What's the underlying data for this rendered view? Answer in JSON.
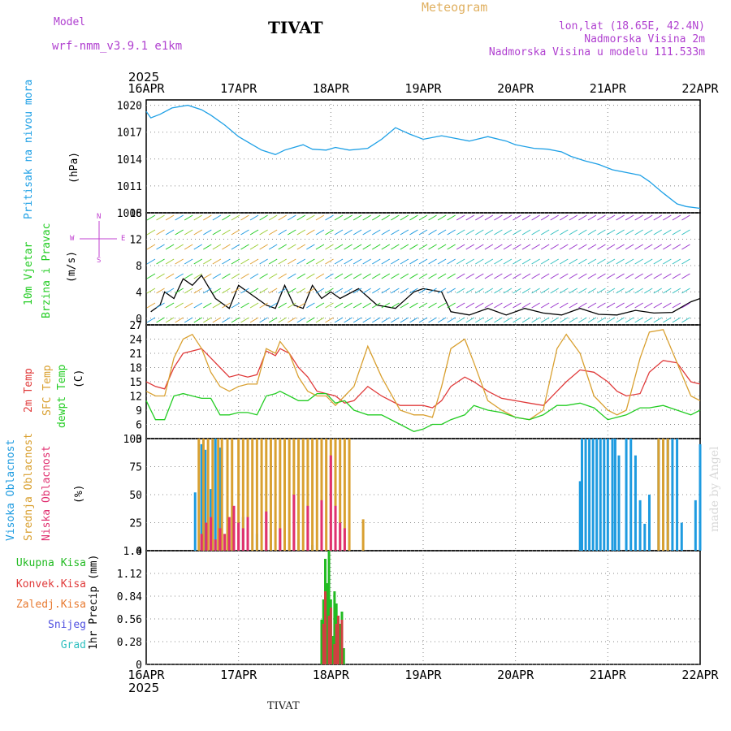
{
  "header": {
    "model_label": "Model",
    "model_name": "wrf-nmm_v3.9.1  e1km",
    "title": "TIVAT",
    "meteogram": "Meteogram",
    "lonlat": "lon,lat (18.65E, 42.4N)",
    "elevation": "Nadmorska Visina 2m",
    "model_elevation": "Nadmorska Visina u modelu 111.533m"
  },
  "footer": {
    "station": "TIVAT",
    "watermark": "made by Angel"
  },
  "time_axis": {
    "year": "2025",
    "labels": [
      "16APR",
      "17APR",
      "18APR",
      "19APR",
      "20APR",
      "21APR",
      "22APR"
    ]
  },
  "colors": {
    "pressure": "#1ea0e6",
    "temp": "#e03a3a",
    "sfc": "#d9a030",
    "dew": "#22cc22",
    "high_cloud": "#1e9be0",
    "mid_cloud": "#d9a030",
    "low_cloud": "#e03070",
    "total_rain": "#22bb22",
    "conv_rain": "#d04040"
  },
  "panels": {
    "pressure": {
      "title": "Pritisak na nivou mora",
      "unit": "(hPa)"
    },
    "wind": {
      "title1": "10m Vjetar",
      "title2": "Brzina i Pravac",
      "unit": "(m/s)",
      "compass_n": "N",
      "compass_w": "W",
      "compass_e": "E",
      "compass_s": "S"
    },
    "temp": {
      "t2m": "2m Temp",
      "sfc": "SFC Temp",
      "dew": "dewpt Temp",
      "unit": "(C)"
    },
    "cloud": {
      "high": "Visoka Oblacnost",
      "mid": "Srednja Oblacnost",
      "low": "Niska Oblacnost",
      "unit": "(%)"
    },
    "precip": {
      "unit": "1hr Precip (mm)",
      "legend": [
        "Ukupna Kisa",
        "Konvek.Kisa",
        "Zaledj.Kisa",
        "Snijeg",
        "Grad"
      ]
    }
  },
  "chart_data": [
    {
      "type": "line",
      "panel": "pressure",
      "x_range_days": [
        0,
        6
      ],
      "ylim": [
        1008,
        1020.6
      ],
      "yticks": [
        1008,
        1011,
        1014,
        1017,
        1020
      ],
      "grid": true,
      "series": [
        {
          "name": "Pritisak na nivou mora",
          "x": [
            0,
            0.05,
            0.15,
            0.28,
            0.45,
            0.6,
            0.7,
            0.85,
            1.0,
            1.15,
            1.25,
            1.4,
            1.5,
            1.6,
            1.7,
            1.8,
            1.95,
            2.05,
            2.2,
            2.4,
            2.55,
            2.7,
            2.85,
            3.0,
            3.2,
            3.35,
            3.5,
            3.7,
            3.9,
            4.0,
            4.2,
            4.35,
            4.5,
            4.6,
            4.75,
            4.9,
            5.05,
            5.2,
            5.35,
            5.45,
            5.6,
            5.75,
            5.85,
            6.0
          ],
          "y": [
            1019.3,
            1018.6,
            1019.0,
            1019.7,
            1020.0,
            1019.5,
            1018.9,
            1017.8,
            1016.5,
            1015.6,
            1015.0,
            1014.5,
            1015.0,
            1015.3,
            1015.6,
            1015.1,
            1015.0,
            1015.3,
            1015.0,
            1015.2,
            1016.2,
            1017.5,
            1016.8,
            1016.2,
            1016.6,
            1016.3,
            1016.0,
            1016.5,
            1016.0,
            1015.6,
            1015.2,
            1015.1,
            1014.8,
            1014.3,
            1013.8,
            1013.4,
            1012.8,
            1012.5,
            1012.2,
            1011.5,
            1010.2,
            1009.0,
            1008.7,
            1008.5
          ]
        }
      ]
    },
    {
      "type": "line",
      "panel": "wind",
      "x_range_days": [
        0,
        6
      ],
      "ylim": [
        -1,
        16
      ],
      "yticks": [
        0,
        4,
        8,
        12,
        16
      ],
      "grid": true,
      "series": [
        {
          "name": "10m Vjetar",
          "x": [
            0.05,
            0.15,
            0.2,
            0.3,
            0.4,
            0.5,
            0.6,
            0.75,
            0.8,
            0.9,
            1.0,
            1.1,
            1.2,
            1.3,
            1.4,
            1.5,
            1.6,
            1.7,
            1.8,
            1.9,
            2.0,
            2.1,
            2.3,
            2.5,
            2.7,
            2.9,
            3.0,
            3.2,
            3.3,
            3.5,
            3.7,
            3.9,
            4.1,
            4.3,
            4.5,
            4.7,
            4.9,
            5.1,
            5.3,
            5.5,
            5.7,
            5.9,
            6.0
          ],
          "y": [
            1,
            2,
            4,
            3,
            6,
            5,
            6.5,
            3,
            2.5,
            1.5,
            5,
            4,
            3,
            2,
            1.5,
            5,
            2,
            1.5,
            5,
            3,
            4,
            3,
            4.5,
            2,
            1.5,
            4,
            4.5,
            4,
            1,
            0.5,
            1.5,
            0.5,
            1.5,
            0.8,
            0.5,
            1.5,
            0.6,
            0.5,
            1.2,
            0.8,
            0.9,
            2.5,
            3
          ]
        }
      ]
    },
    {
      "type": "line",
      "panel": "temp",
      "x_range_days": [
        0,
        6
      ],
      "ylim": [
        3,
        27
      ],
      "yticks": [
        3,
        6,
        9,
        12,
        15,
        18,
        21,
        24,
        27
      ],
      "grid": true,
      "series": [
        {
          "name": "2m Temp",
          "x": [
            0,
            0.1,
            0.2,
            0.3,
            0.4,
            0.5,
            0.6,
            0.7,
            0.8,
            0.9,
            1.0,
            1.1,
            1.2,
            1.3,
            1.4,
            1.45,
            1.55,
            1.65,
            1.75,
            1.85,
            1.95,
            2.05,
            2.15,
            2.25,
            2.4,
            2.55,
            2.75,
            2.9,
            3.0,
            3.1,
            3.2,
            3.3,
            3.45,
            3.55,
            3.7,
            3.85,
            4.0,
            4.15,
            4.3,
            4.45,
            4.55,
            4.7,
            4.85,
            5.0,
            5.1,
            5.2,
            5.35,
            5.45,
            5.6,
            5.75,
            5.9,
            6.0
          ],
          "y": [
            15,
            14,
            13.5,
            18,
            21,
            21.5,
            22,
            20,
            18,
            16,
            16.5,
            16,
            16.5,
            21.5,
            20.5,
            22,
            21,
            18,
            16,
            13,
            12.5,
            12,
            10.5,
            11,
            14,
            12,
            10,
            10,
            10,
            9.5,
            11,
            14,
            16,
            15,
            13,
            11.5,
            11,
            10.5,
            10,
            13,
            15,
            17.5,
            17,
            15,
            13,
            12,
            12.5,
            17,
            19.5,
            19,
            15,
            14.5
          ]
        },
        {
          "name": "SFC Temp",
          "x": [
            0,
            0.1,
            0.2,
            0.3,
            0.4,
            0.5,
            0.6,
            0.7,
            0.8,
            0.9,
            1.0,
            1.1,
            1.2,
            1.3,
            1.4,
            1.45,
            1.55,
            1.65,
            1.75,
            1.85,
            1.95,
            2.05,
            2.15,
            2.25,
            2.4,
            2.55,
            2.75,
            2.9,
            3.0,
            3.1,
            3.2,
            3.3,
            3.45,
            3.55,
            3.7,
            3.85,
            4.0,
            4.15,
            4.3,
            4.45,
            4.55,
            4.7,
            4.85,
            5.0,
            5.1,
            5.2,
            5.35,
            5.45,
            5.6,
            5.75,
            5.9,
            6.0
          ],
          "y": [
            13,
            12,
            12,
            20,
            24,
            25,
            22,
            17,
            14,
            13,
            14,
            14.5,
            14.5,
            22,
            21,
            23.5,
            21,
            16,
            13,
            12,
            12,
            10,
            12,
            14,
            22.5,
            16,
            9,
            8,
            8,
            7.5,
            14,
            22,
            24,
            19,
            11,
            9,
            7.5,
            7,
            9,
            22,
            25,
            21,
            12,
            9,
            8,
            9,
            20,
            25.5,
            26,
            19,
            12,
            11
          ]
        },
        {
          "name": "dewpt Temp",
          "x": [
            0,
            0.1,
            0.2,
            0.3,
            0.4,
            0.5,
            0.6,
            0.7,
            0.8,
            0.9,
            1.0,
            1.1,
            1.2,
            1.3,
            1.4,
            1.45,
            1.55,
            1.65,
            1.75,
            1.85,
            1.95,
            2.05,
            2.15,
            2.25,
            2.4,
            2.55,
            2.75,
            2.9,
            3.0,
            3.1,
            3.2,
            3.3,
            3.45,
            3.55,
            3.7,
            3.85,
            4.0,
            4.15,
            4.3,
            4.45,
            4.55,
            4.7,
            4.85,
            5.0,
            5.1,
            5.2,
            5.35,
            5.45,
            5.6,
            5.75,
            5.9,
            6.0
          ],
          "y": [
            11,
            7,
            7,
            12,
            12.5,
            12,
            11.5,
            11.5,
            8,
            8,
            8.5,
            8.5,
            8,
            12,
            12.5,
            13,
            12,
            11,
            11,
            12.5,
            12.5,
            10.5,
            11,
            9,
            8,
            8,
            6,
            4.5,
            5,
            6,
            6,
            7,
            8,
            10,
            9,
            8.5,
            7.5,
            7,
            8,
            10,
            10,
            10.5,
            9.5,
            7,
            7.5,
            8,
            9.5,
            9.5,
            10,
            9,
            8,
            9
          ]
        }
      ]
    },
    {
      "type": "bar",
      "panel": "cloud",
      "x_range_days": [
        0,
        6
      ],
      "ylim": [
        0,
        100
      ],
      "yticks": [
        0,
        25,
        50,
        75,
        100
      ],
      "grid": true,
      "series": [
        {
          "name": "Visoka Oblacnost",
          "x": [
            0.53,
            0.6,
            0.64,
            0.7,
            0.75,
            0.8,
            1.05,
            1.2,
            1.35,
            1.5,
            1.65,
            1.8,
            4.7,
            4.72,
            4.76,
            4.8,
            4.84,
            4.88,
            4.92,
            4.96,
            5.0,
            5.05,
            5.08,
            5.12,
            5.2,
            5.25,
            5.3,
            5.35,
            5.4,
            5.45,
            5.55,
            5.6,
            5.65,
            5.7,
            5.75,
            5.8,
            5.85,
            5.9,
            5.95,
            6.0
          ],
          "y": [
            52,
            95,
            90,
            55,
            100,
            92,
            30,
            15,
            20,
            25,
            10,
            5,
            62,
            100,
            100,
            100,
            100,
            100,
            100,
            100,
            100,
            100,
            100,
            85,
            100,
            100,
            85,
            45,
            24,
            50,
            100,
            100,
            100,
            100,
            100,
            25,
            0,
            0,
            45,
            95
          ]
        },
        {
          "name": "Srednja Oblacnost",
          "x": [
            0.57,
            0.62,
            0.67,
            0.72,
            0.78,
            0.82,
            0.88,
            0.93,
            1.0,
            1.05,
            1.1,
            1.15,
            1.2,
            1.25,
            1.3,
            1.35,
            1.4,
            1.45,
            1.5,
            1.55,
            1.6,
            1.65,
            1.7,
            1.75,
            1.8,
            1.85,
            1.9,
            1.95,
            2.0,
            2.05,
            2.1,
            2.15,
            2.2,
            2.35,
            5.55,
            5.6,
            5.65
          ],
          "y": [
            100,
            100,
            100,
            100,
            100,
            100,
            100,
            100,
            100,
            100,
            100,
            100,
            100,
            100,
            100,
            100,
            100,
            100,
            100,
            100,
            100,
            100,
            100,
            100,
            100,
            100,
            100,
            100,
            100,
            100,
            100,
            100,
            100,
            28,
            100,
            100,
            100
          ]
        },
        {
          "name": "Niska Oblacnost",
          "x": [
            0.6,
            0.65,
            0.7,
            0.75,
            0.8,
            0.85,
            0.9,
            0.95,
            1.0,
            1.05,
            1.1,
            1.3,
            1.45,
            1.6,
            1.75,
            1.9,
            2.0,
            2.05,
            2.1,
            2.15
          ],
          "y": [
            15,
            25,
            30,
            10,
            20,
            15,
            30,
            40,
            25,
            20,
            30,
            35,
            20,
            50,
            40,
            45,
            85,
            40,
            25,
            20
          ]
        }
      ]
    },
    {
      "type": "bar",
      "panel": "precip",
      "x_range_days": [
        0,
        6
      ],
      "ylim": [
        0,
        1.4
      ],
      "yticks": [
        0,
        0.28,
        0.56,
        0.84,
        1.12,
        1.4
      ],
      "grid": true,
      "series": [
        {
          "name": "Ukupna Kisa",
          "x": [
            1.9,
            1.92,
            1.94,
            1.96,
            1.98,
            2.0,
            2.02,
            2.04,
            2.06,
            2.08,
            2.1,
            2.12,
            2.14
          ],
          "y": [
            0.55,
            0.8,
            1.3,
            1.0,
            1.4,
            0.8,
            0.35,
            0.9,
            0.75,
            0.6,
            0.5,
            0.65,
            0.2
          ]
        },
        {
          "name": "Konvek.Kisa",
          "x": [
            1.92,
            1.94,
            1.98,
            2.0,
            2.04,
            2.06,
            2.08,
            2.12
          ],
          "y": [
            0.5,
            0.9,
            0.6,
            0.7,
            0.25,
            0.5,
            0.6,
            0.55
          ]
        }
      ]
    }
  ]
}
